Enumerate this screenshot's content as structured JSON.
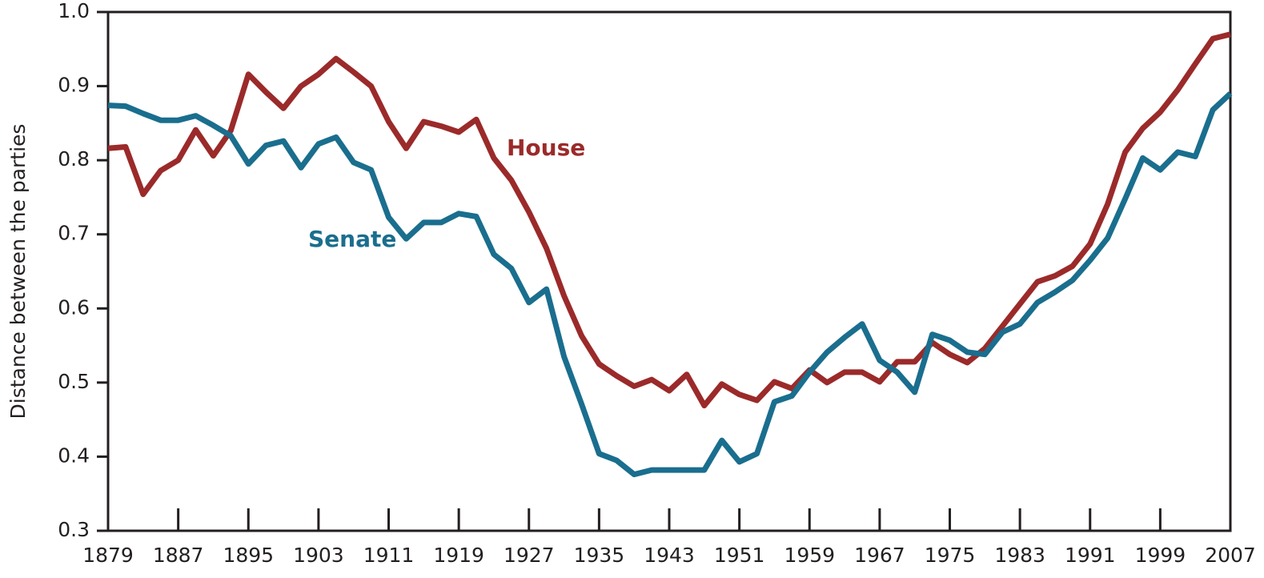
{
  "chart_data": {
    "type": "line",
    "y_label": "Distance between the parties",
    "x": [
      1879,
      1881,
      1883,
      1885,
      1887,
      1889,
      1891,
      1893,
      1895,
      1897,
      1899,
      1901,
      1903,
      1905,
      1907,
      1909,
      1911,
      1913,
      1915,
      1917,
      1919,
      1921,
      1923,
      1925,
      1927,
      1929,
      1931,
      1933,
      1935,
      1937,
      1939,
      1941,
      1943,
      1945,
      1947,
      1949,
      1951,
      1953,
      1955,
      1957,
      1959,
      1961,
      1963,
      1965,
      1967,
      1969,
      1971,
      1973,
      1975,
      1977,
      1979,
      1981,
      1983,
      1985,
      1987,
      1989,
      1991,
      1993,
      1995,
      1997,
      1999,
      2001,
      2003,
      2005,
      2007
    ],
    "series": [
      {
        "name": "House",
        "color": "#9b2a2a",
        "values": [
          0.816,
          0.818,
          0.754,
          0.786,
          0.8,
          0.841,
          0.806,
          0.84,
          0.916,
          0.892,
          0.87,
          0.9,
          0.916,
          0.937,
          0.919,
          0.9,
          0.852,
          0.816,
          0.852,
          0.846,
          0.838,
          0.855,
          0.803,
          0.773,
          0.73,
          0.681,
          0.617,
          0.563,
          0.525,
          0.509,
          0.495,
          0.504,
          0.489,
          0.511,
          0.469,
          0.498,
          0.484,
          0.476,
          0.501,
          0.492,
          0.517,
          0.5,
          0.514,
          0.514,
          0.501,
          0.528,
          0.528,
          0.554,
          0.538,
          0.527,
          0.546,
          0.576,
          0.606,
          0.636,
          0.644,
          0.657,
          0.687,
          0.741,
          0.811,
          0.843,
          0.865,
          0.895,
          0.93,
          0.964,
          0.97
        ]
      },
      {
        "name": "Senate",
        "color": "#1a6e8e",
        "values": [
          0.874,
          0.873,
          0.863,
          0.854,
          0.854,
          0.86,
          0.847,
          0.833,
          0.795,
          0.82,
          0.826,
          0.79,
          0.822,
          0.831,
          0.797,
          0.787,
          0.723,
          0.694,
          0.716,
          0.716,
          0.728,
          0.724,
          0.673,
          0.654,
          0.608,
          0.626,
          0.535,
          0.471,
          0.404,
          0.395,
          0.376,
          0.382,
          0.382,
          0.382,
          0.382,
          0.422,
          0.393,
          0.404,
          0.474,
          0.482,
          0.514,
          0.541,
          0.561,
          0.579,
          0.53,
          0.514,
          0.487,
          0.565,
          0.557,
          0.541,
          0.538,
          0.568,
          0.579,
          0.608,
          0.622,
          0.638,
          0.665,
          0.695,
          0.748,
          0.803,
          0.787,
          0.811,
          0.805,
          0.868,
          0.89
        ]
      }
    ],
    "xlim": [
      1879,
      2007
    ],
    "xticks": [
      1879,
      1887,
      1895,
      1903,
      1911,
      1919,
      1927,
      1935,
      1943,
      1951,
      1959,
      1967,
      1975,
      1983,
      1991,
      1999,
      2007
    ],
    "ylim": [
      0.3,
      1.0
    ],
    "yticks": [
      0.3,
      0.4,
      0.5,
      0.6,
      0.7,
      0.8,
      0.9,
      {
        "value": 1,
        "label": "1.0"
      }
    ]
  }
}
